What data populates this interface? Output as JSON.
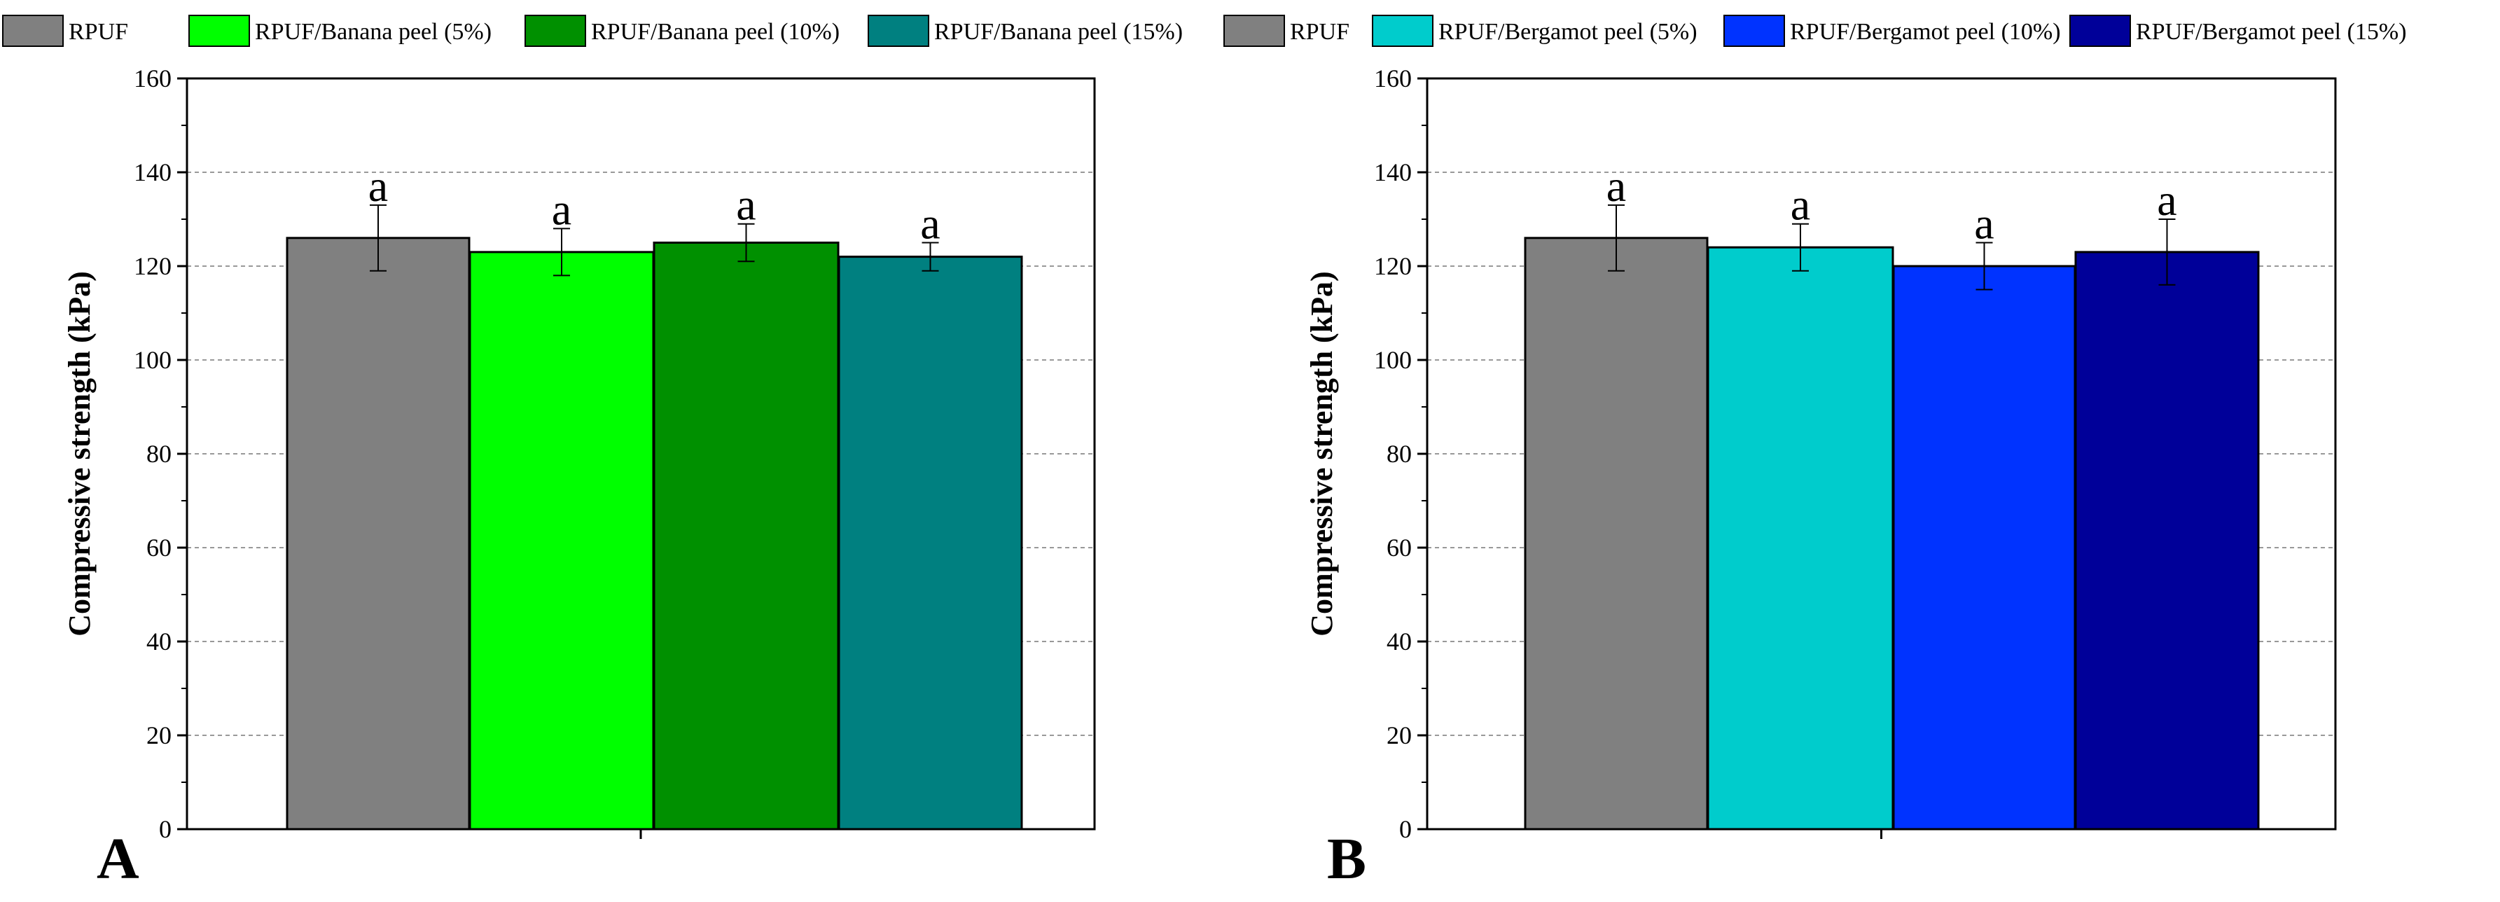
{
  "legend": [
    {
      "label": "RPUF",
      "color": "#808080"
    },
    {
      "label": "RPUF/Banana peel (5%)",
      "color": "#00ff00"
    },
    {
      "label": "RPUF/Banana peel (10%)",
      "color": "#009000"
    },
    {
      "label": "RPUF/Banana peel (15%)",
      "color": "#008080"
    },
    {
      "label": "RPUF",
      "color": "#808080"
    },
    {
      "label": "RPUF/Bergamot peel (5%)",
      "color": "#00cccc"
    },
    {
      "label": "RPUF/Bergamot peel (10%)",
      "color": "#0033ff"
    },
    {
      "label": "RPUF/Bergamot peel (15%)",
      "color": "#000099"
    }
  ],
  "chart_data": [
    {
      "type": "bar",
      "panel_label": "A",
      "ylabel": "Compressive strength (kPa)",
      "xlabel": "",
      "ylim": [
        0,
        160
      ],
      "yticks": [
        0,
        20,
        40,
        60,
        80,
        100,
        120,
        140,
        160
      ],
      "grid": "horizontal dashed",
      "series": [
        {
          "name": "RPUF",
          "value": 126,
          "error": 7,
          "sig": "a",
          "color": "#808080"
        },
        {
          "name": "RPUF/Banana peel (5%)",
          "value": 123,
          "error": 5,
          "sig": "a",
          "color": "#00ff00"
        },
        {
          "name": "RPUF/Banana peel (10%)",
          "value": 125,
          "error": 4,
          "sig": "a",
          "color": "#009000"
        },
        {
          "name": "RPUF/Banana peel (15%)",
          "value": 122,
          "error": 3,
          "sig": "a",
          "color": "#008080"
        }
      ]
    },
    {
      "type": "bar",
      "panel_label": "B",
      "ylabel": "Compressive strength (kPa)",
      "xlabel": "",
      "ylim": [
        0,
        160
      ],
      "yticks": [
        0,
        20,
        40,
        60,
        80,
        100,
        120,
        140,
        160
      ],
      "grid": "horizontal dashed",
      "series": [
        {
          "name": "RPUF",
          "value": 126,
          "error": 7,
          "sig": "a",
          "color": "#808080"
        },
        {
          "name": "RPUF/Bergamot peel (5%)",
          "value": 124,
          "error": 5,
          "sig": "a",
          "color": "#00cccc"
        },
        {
          "name": "RPUF/Bergamot peel (10%)",
          "value": 120,
          "error": 5,
          "sig": "a",
          "color": "#0033ff"
        },
        {
          "name": "RPUF/Bergamot peel (15%)",
          "value": 123,
          "error": 7,
          "sig": "a",
          "color": "#000099"
        }
      ]
    }
  ]
}
